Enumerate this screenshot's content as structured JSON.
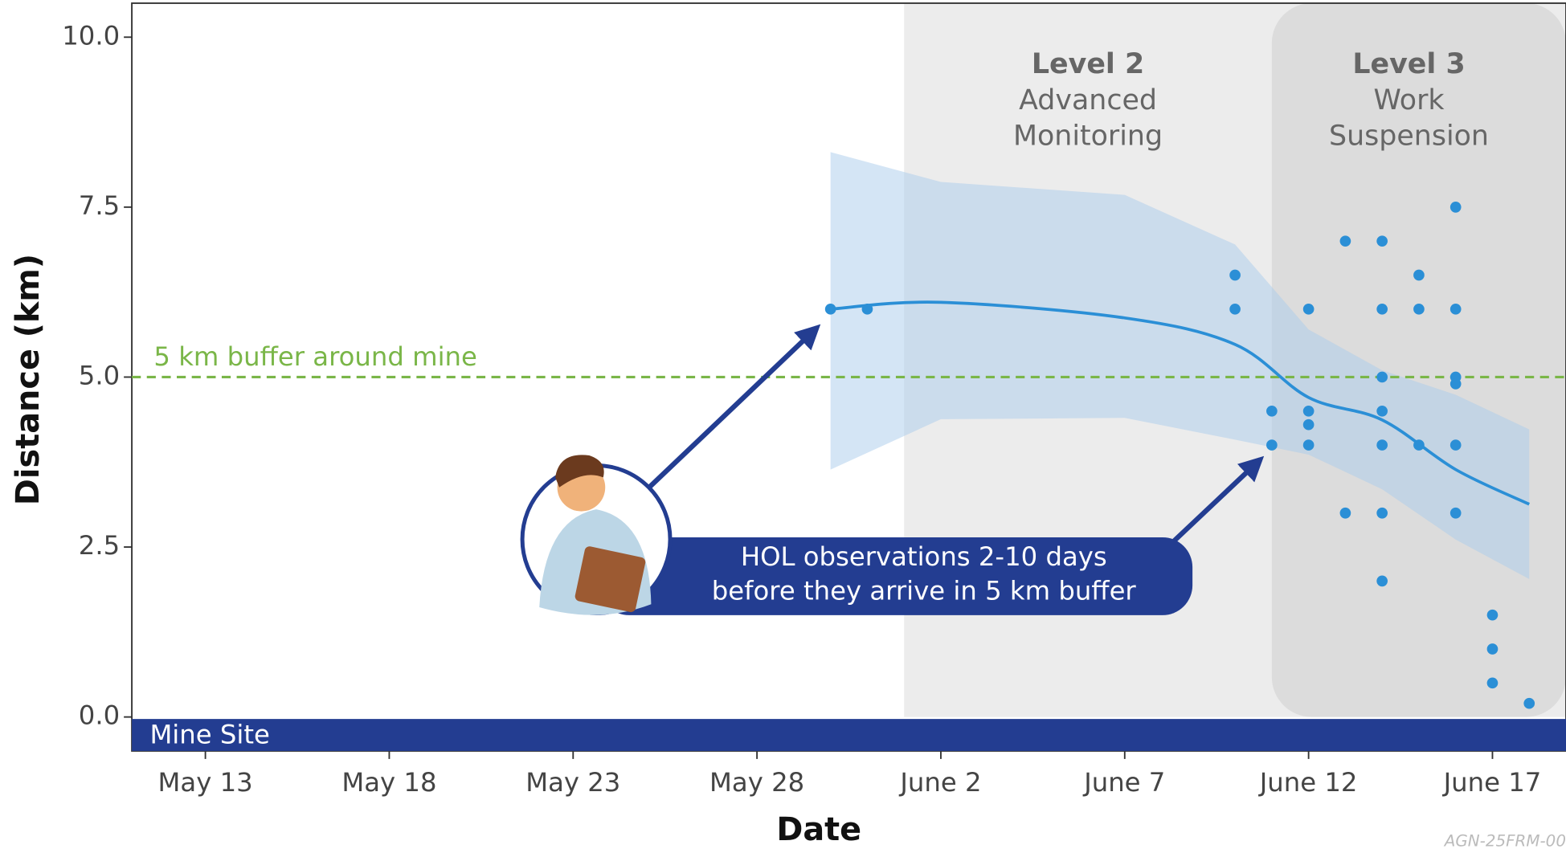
{
  "chart_data": {
    "type": "scatter",
    "x_label": "Date",
    "y_label": "Distance (km)",
    "xlim": [
      "May 11",
      "June 19"
    ],
    "ylim": [
      -0.5,
      10.5
    ],
    "xticks": [
      "May 13",
      "May 18",
      "May 23",
      "May 28",
      "June 2",
      "June 7",
      "June 12",
      "June 17"
    ],
    "yticks": [
      {
        "value": 0,
        "label": "0.0"
      },
      2.5,
      {
        "value": 5,
        "label": "5.0"
      },
      7.5,
      {
        "value": 10,
        "label": "10.0"
      }
    ],
    "points": {
      "color": "#2b8fd6",
      "x": [
        "May 30",
        "May 31",
        "June 10",
        "June 10",
        "June 11",
        "June 11",
        "June 12",
        "June 12",
        "June 12",
        "June 12",
        "June 13",
        "June 13",
        "June 14",
        "June 14",
        "June 14",
        "June 14",
        "June 14",
        "June 14",
        "June 14",
        "June 15",
        "June 15",
        "June 15",
        "June 16",
        "June 16",
        "June 16",
        "June 16",
        "June 16",
        "June 16",
        "June 17",
        "June 17",
        "June 17",
        "June 18"
      ],
      "values": [
        6.0,
        6.0,
        6.5,
        6.0,
        4.5,
        4.0,
        6.0,
        4.5,
        4.3,
        4.0,
        7.0,
        3.0,
        7.0,
        6.0,
        5.0,
        4.5,
        4.0,
        3.0,
        2.0,
        6.5,
        6.0,
        4.0,
        7.5,
        6.0,
        5.0,
        4.9,
        4.0,
        3.0,
        1.5,
        1.0,
        0.5,
        0.2
      ]
    },
    "trend": {
      "color": "#2b8fd6",
      "band_color": "#a9cbec",
      "x": [
        "May 30",
        "June 2",
        "June 7",
        "June 10",
        "June 12",
        "June 14",
        "June 16",
        "June 18"
      ],
      "values": [
        6.0,
        6.1,
        5.87,
        5.48,
        4.7,
        4.37,
        3.64,
        3.13
      ],
      "upper": [
        8.31,
        7.87,
        7.68,
        6.95,
        5.7,
        5.1,
        4.74,
        4.23
      ],
      "lower": [
        3.64,
        4.38,
        4.4,
        4.08,
        3.86,
        3.35,
        2.61,
        2.03
      ]
    },
    "buffer": {
      "value": 5,
      "label": "5 km buffer around mine",
      "color": "#7ab648"
    },
    "zones": [
      {
        "start": "June 1",
        "title": "Level 2",
        "lines": [
          "Advanced",
          "Monitoring"
        ],
        "color": "#ececec"
      },
      {
        "start": "June 11",
        "title": "Level 3",
        "lines": [
          "Work",
          "Suspension"
        ],
        "color": "#dcdcdc"
      }
    ],
    "baseline_label": "Mine Site",
    "baseline_color": "#233d91",
    "annotation": [
      "HOL observations 2-10 days",
      "before they arrive in 5 km buffer"
    ],
    "watermark": "AGN-25FRM-00"
  }
}
